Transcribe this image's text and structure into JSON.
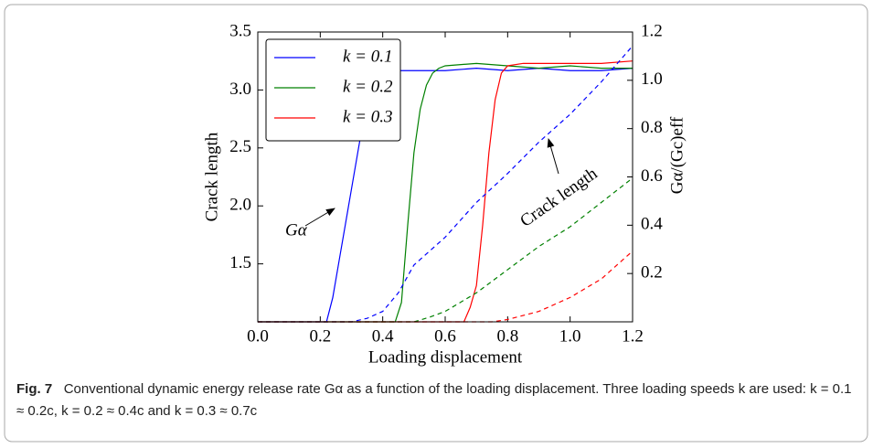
{
  "chart_data": {
    "type": "line",
    "xlabel": "Loading displacement",
    "ylabel": "Crack length",
    "y2label": "Gα/(Gc)eff",
    "xlim": [
      0,
      1.2
    ],
    "xticks": [
      {
        "value": 0,
        "label": "0.0"
      },
      0.2,
      0.4,
      0.6,
      0.8,
      {
        "value": 1,
        "label": "1.0"
      },
      1.2
    ],
    "ylim": [
      1,
      3.5
    ],
    "yticks": [
      1.5,
      {
        "value": 2,
        "label": "2.0"
      },
      2.5,
      {
        "value": 3,
        "label": "3.0"
      },
      3.5
    ],
    "y2lim": [
      0,
      1.2
    ],
    "y2ticks": [
      0.2,
      0.4,
      0.6,
      0.8,
      {
        "value": 1,
        "label": "1.0"
      },
      1.2
    ],
    "legend": "upper left",
    "series": [
      {
        "name": "k = 0.1",
        "color": "#0000ff",
        "axis": "y2",
        "x": [
          0,
          0.22,
          0.24,
          0.26,
          0.28,
          0.3,
          0.32,
          0.34,
          0.36,
          0.38,
          0.4,
          0.5,
          0.6,
          0.7,
          0.8,
          0.9,
          1.0,
          1.1,
          1.2
        ],
        "values": [
          0,
          0,
          0.1,
          0.25,
          0.4,
          0.55,
          0.7,
          0.85,
          0.98,
          1.03,
          1.04,
          1.04,
          1.04,
          1.05,
          1.04,
          1.05,
          1.04,
          1.04,
          1.05
        ]
      },
      {
        "name": "k = 0.2",
        "color": "#008000",
        "axis": "y2",
        "x": [
          0,
          0.44,
          0.46,
          0.48,
          0.5,
          0.52,
          0.54,
          0.56,
          0.58,
          0.6,
          0.7,
          0.8,
          0.9,
          1.0,
          1.1,
          1.2
        ],
        "values": [
          0,
          0,
          0.08,
          0.4,
          0.7,
          0.88,
          0.98,
          1.03,
          1.05,
          1.06,
          1.07,
          1.06,
          1.05,
          1.06,
          1.05,
          1.05
        ]
      },
      {
        "name": "k = 0.3",
        "color": "#ff0000",
        "axis": "y2",
        "x": [
          0,
          0.66,
          0.68,
          0.7,
          0.72,
          0.74,
          0.76,
          0.78,
          0.8,
          0.85,
          0.9,
          1.0,
          1.1,
          1.2
        ],
        "values": [
          0,
          0,
          0.06,
          0.15,
          0.4,
          0.7,
          0.92,
          1.03,
          1.06,
          1.07,
          1.07,
          1.07,
          1.07,
          1.08
        ]
      },
      {
        "color": "#0000ff",
        "dashed": true,
        "x": [
          0,
          0.3,
          0.35,
          0.4,
          0.45,
          0.5,
          0.6,
          0.7,
          0.8,
          0.9,
          1.0,
          1.1,
          1.2
        ],
        "values": [
          1,
          1,
          1.03,
          1.09,
          1.25,
          1.49,
          1.73,
          2.03,
          2.28,
          2.55,
          2.79,
          3.07,
          3.38
        ]
      },
      {
        "color": "#008000",
        "dashed": true,
        "x": [
          0,
          0.5,
          0.55,
          0.6,
          0.7,
          0.8,
          0.9,
          1.0,
          1.1,
          1.2
        ],
        "values": [
          1,
          1,
          1.04,
          1.09,
          1.25,
          1.45,
          1.65,
          1.82,
          2.03,
          2.24
        ]
      },
      {
        "color": "#ff0000",
        "dashed": true,
        "x": [
          0,
          0.75,
          0.8,
          0.9,
          1.0,
          1.1,
          1.2
        ],
        "values": [
          1,
          1,
          1.02,
          1.09,
          1.21,
          1.37,
          1.61
        ]
      }
    ],
    "annotations": [
      {
        "text": "Gα"
      },
      {
        "text": "Crack length"
      }
    ],
    "caption_label": "Fig. 7",
    "caption": "Conventional dynamic energy release rate Gα as a function of the loading displacement. Three loading speeds k are used: k = 0.1 ≈ 0.2c, k = 0.2 ≈ 0.4c and k = 0.3 ≈ 0.7c"
  }
}
